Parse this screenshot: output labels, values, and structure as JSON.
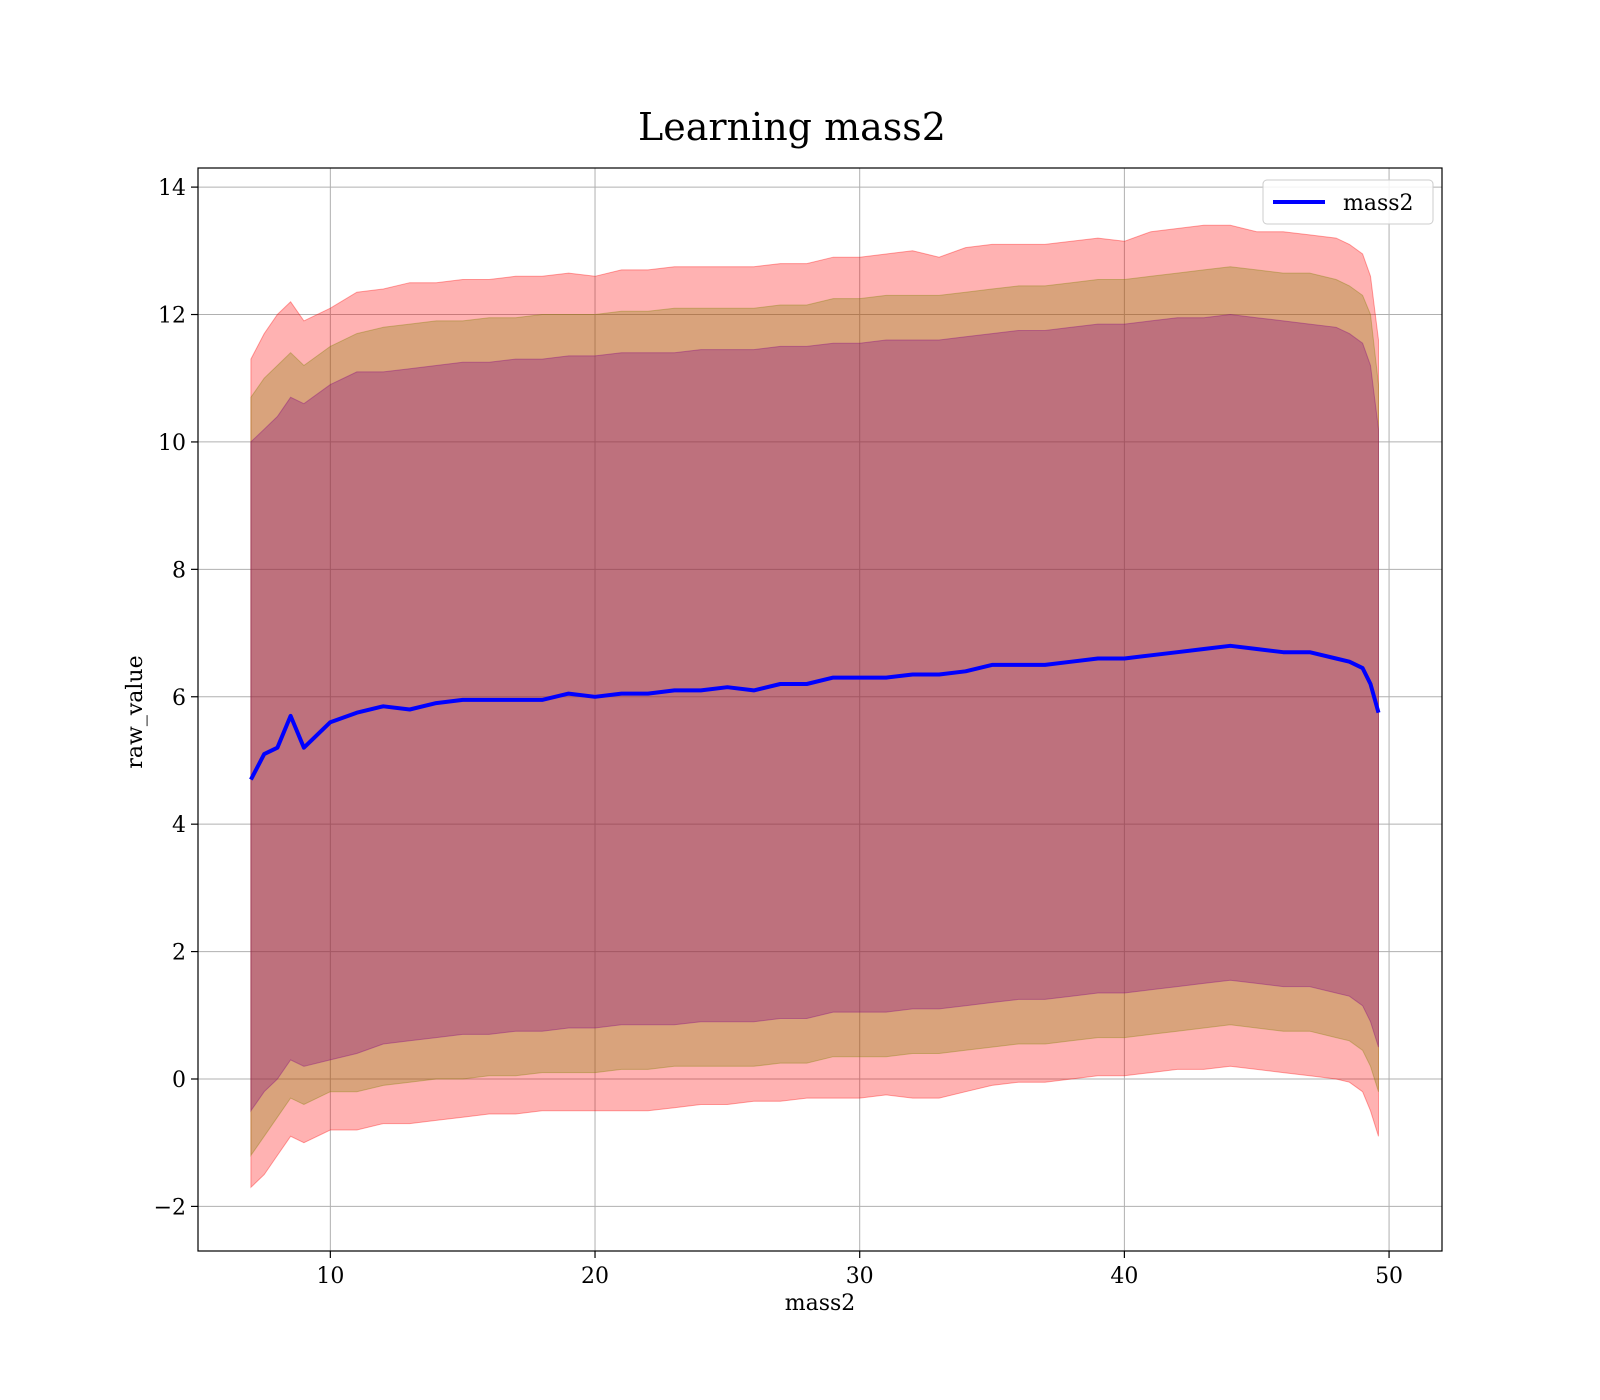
{
  "chart_data": {
    "type": "line",
    "title": "Learning mass2",
    "xlabel": "mass2",
    "ylabel": "raw_value",
    "xlim": [
      5,
      52
    ],
    "ylim": [
      -2.7,
      14.3
    ],
    "xticks": [
      10,
      20,
      30,
      40,
      50
    ],
    "yticks": [
      -2,
      0,
      2,
      4,
      6,
      8,
      10,
      12,
      14
    ],
    "xtick_labels": [
      "10",
      "20",
      "30",
      "40",
      "50"
    ],
    "ytick_labels": [
      "−2",
      "0",
      "2",
      "4",
      "6",
      "8",
      "10",
      "12",
      "14"
    ],
    "grid": true,
    "legend": {
      "position": "top-right",
      "entries": [
        "mass2"
      ]
    },
    "x": [
      7.0,
      7.5,
      8.0,
      8.5,
      9.0,
      10.0,
      11.0,
      12.0,
      13.0,
      14.0,
      15.0,
      16.0,
      17.0,
      18.0,
      19.0,
      20.0,
      21.0,
      22.0,
      23.0,
      24.0,
      25.0,
      26.0,
      27.0,
      28.0,
      29.0,
      30.0,
      31.0,
      32.0,
      33.0,
      34.0,
      35.0,
      36.0,
      37.0,
      38.0,
      39.0,
      40.0,
      41.0,
      42.0,
      43.0,
      44.0,
      45.0,
      46.0,
      47.0,
      48.0,
      48.5,
      49.0,
      49.3,
      49.6
    ],
    "series": [
      {
        "name": "mass2",
        "color": "#0000ff",
        "values": [
          4.7,
          5.1,
          5.2,
          5.7,
          5.2,
          5.6,
          5.75,
          5.85,
          5.8,
          5.9,
          5.95,
          5.95,
          5.95,
          5.95,
          6.05,
          6.0,
          6.05,
          6.05,
          6.1,
          6.1,
          6.15,
          6.1,
          6.2,
          6.2,
          6.3,
          6.3,
          6.3,
          6.35,
          6.35,
          6.4,
          6.5,
          6.5,
          6.5,
          6.55,
          6.6,
          6.6,
          6.65,
          6.7,
          6.75,
          6.8,
          6.75,
          6.7,
          6.7,
          6.6,
          6.55,
          6.45,
          6.2,
          5.75
        ]
      }
    ],
    "bands": [
      {
        "color": "#ff0000",
        "opacity": 0.3,
        "upper": [
          11.3,
          11.7,
          12.0,
          12.2,
          11.9,
          12.1,
          12.35,
          12.4,
          12.5,
          12.5,
          12.55,
          12.55,
          12.6,
          12.6,
          12.65,
          12.6,
          12.7,
          12.7,
          12.75,
          12.75,
          12.75,
          12.75,
          12.8,
          12.8,
          12.9,
          12.9,
          12.95,
          13.0,
          12.9,
          13.05,
          13.1,
          13.1,
          13.1,
          13.15,
          13.2,
          13.15,
          13.3,
          13.35,
          13.4,
          13.4,
          13.3,
          13.3,
          13.25,
          13.2,
          13.1,
          12.95,
          12.6,
          11.6
        ],
        "lower": [
          -1.7,
          -1.5,
          -1.2,
          -0.9,
          -1.0,
          -0.8,
          -0.8,
          -0.7,
          -0.7,
          -0.65,
          -0.6,
          -0.55,
          -0.55,
          -0.5,
          -0.5,
          -0.5,
          -0.5,
          -0.5,
          -0.45,
          -0.4,
          -0.4,
          -0.35,
          -0.35,
          -0.3,
          -0.3,
          -0.3,
          -0.25,
          -0.3,
          -0.3,
          -0.2,
          -0.1,
          -0.05,
          -0.05,
          0.0,
          0.05,
          0.05,
          0.1,
          0.15,
          0.15,
          0.2,
          0.15,
          0.1,
          0.05,
          0.0,
          -0.05,
          -0.2,
          -0.5,
          -0.9
        ]
      },
      {
        "color": "#808000",
        "opacity": 0.3,
        "upper": [
          10.7,
          11.0,
          11.2,
          11.4,
          11.2,
          11.5,
          11.7,
          11.8,
          11.85,
          11.9,
          11.9,
          11.95,
          11.95,
          12.0,
          12.0,
          12.0,
          12.05,
          12.05,
          12.1,
          12.1,
          12.1,
          12.1,
          12.15,
          12.15,
          12.25,
          12.25,
          12.3,
          12.3,
          12.3,
          12.35,
          12.4,
          12.45,
          12.45,
          12.5,
          12.55,
          12.55,
          12.6,
          12.65,
          12.7,
          12.75,
          12.7,
          12.65,
          12.65,
          12.55,
          12.45,
          12.3,
          12.0,
          10.9
        ],
        "lower": [
          -1.2,
          -0.9,
          -0.6,
          -0.3,
          -0.4,
          -0.2,
          -0.2,
          -0.1,
          -0.05,
          0.0,
          0.0,
          0.05,
          0.05,
          0.1,
          0.1,
          0.1,
          0.15,
          0.15,
          0.2,
          0.2,
          0.2,
          0.2,
          0.25,
          0.25,
          0.35,
          0.35,
          0.35,
          0.4,
          0.4,
          0.45,
          0.5,
          0.55,
          0.55,
          0.6,
          0.65,
          0.65,
          0.7,
          0.75,
          0.8,
          0.85,
          0.8,
          0.75,
          0.75,
          0.65,
          0.6,
          0.45,
          0.2,
          -0.2
        ]
      },
      {
        "color": "#800080",
        "opacity": 0.3,
        "upper": [
          10.0,
          10.2,
          10.4,
          10.7,
          10.6,
          10.9,
          11.1,
          11.1,
          11.15,
          11.2,
          11.25,
          11.25,
          11.3,
          11.3,
          11.35,
          11.35,
          11.4,
          11.4,
          11.4,
          11.45,
          11.45,
          11.45,
          11.5,
          11.5,
          11.55,
          11.55,
          11.6,
          11.6,
          11.6,
          11.65,
          11.7,
          11.75,
          11.75,
          11.8,
          11.85,
          11.85,
          11.9,
          11.95,
          11.95,
          12.0,
          11.95,
          11.9,
          11.85,
          11.8,
          11.7,
          11.55,
          11.2,
          10.2
        ],
        "lower": [
          -0.5,
          -0.2,
          0.0,
          0.3,
          0.2,
          0.3,
          0.4,
          0.55,
          0.6,
          0.65,
          0.7,
          0.7,
          0.75,
          0.75,
          0.8,
          0.8,
          0.85,
          0.85,
          0.85,
          0.9,
          0.9,
          0.9,
          0.95,
          0.95,
          1.05,
          1.05,
          1.05,
          1.1,
          1.1,
          1.15,
          1.2,
          1.25,
          1.25,
          1.3,
          1.35,
          1.35,
          1.4,
          1.45,
          1.5,
          1.55,
          1.5,
          1.45,
          1.45,
          1.35,
          1.3,
          1.15,
          0.9,
          0.5
        ]
      }
    ]
  }
}
